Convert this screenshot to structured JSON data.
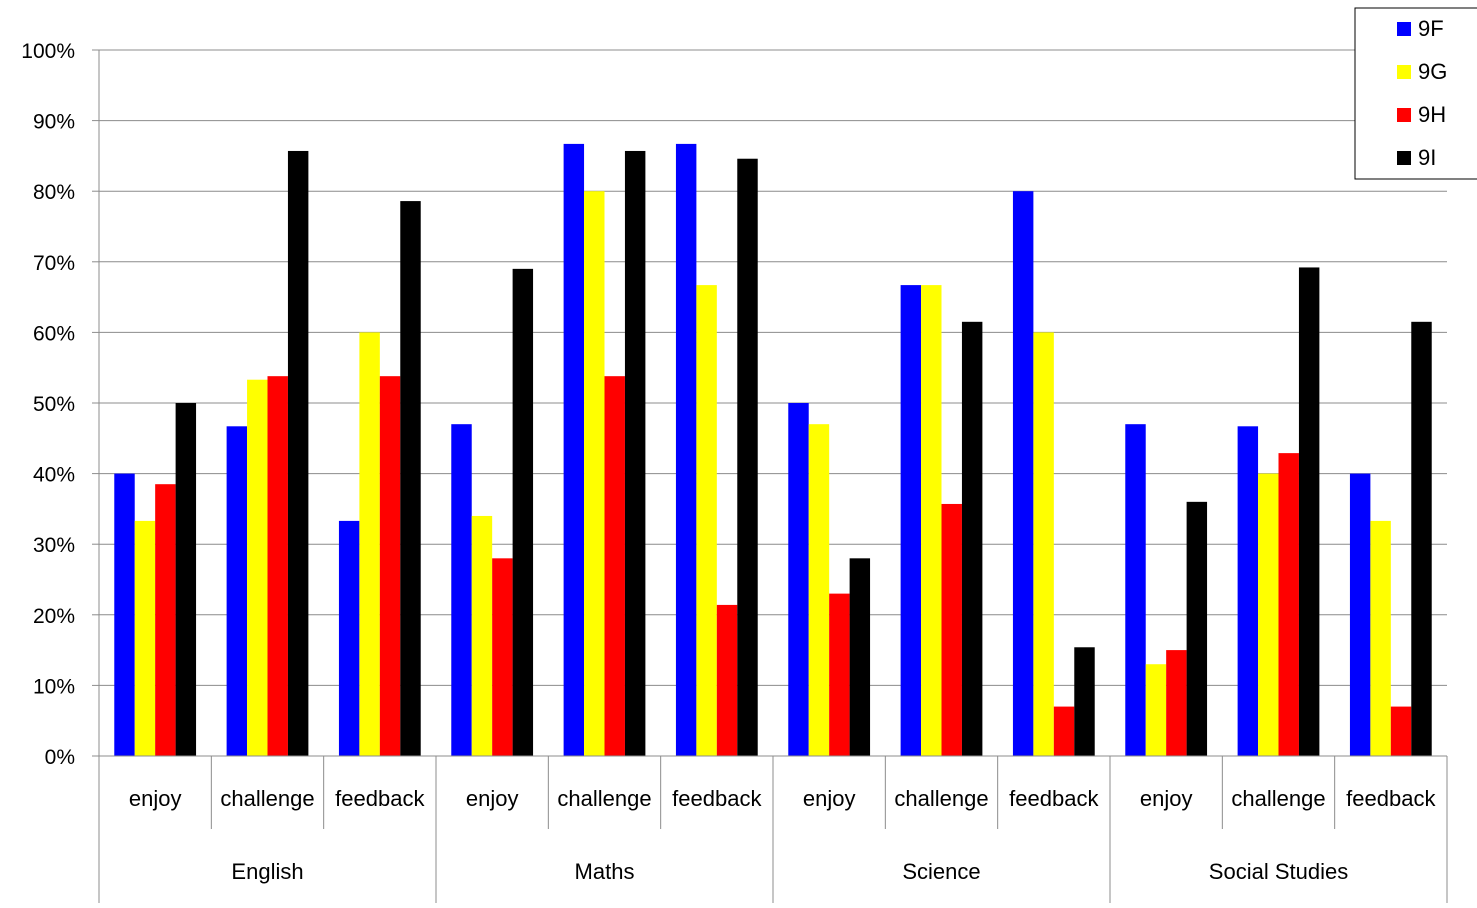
{
  "chart_data": {
    "type": "bar",
    "groups": [
      {
        "name": "English",
        "categories": [
          "enjoy",
          "challenge",
          "feedback"
        ]
      },
      {
        "name": "Maths",
        "categories": [
          "enjoy",
          "challenge",
          "feedback"
        ]
      },
      {
        "name": "Science",
        "categories": [
          "enjoy",
          "challenge",
          "feedback"
        ]
      },
      {
        "name": "Social Studies",
        "categories": [
          "enjoy",
          "challenge",
          "feedback"
        ]
      }
    ],
    "y_unit": "%",
    "ylim": [
      0,
      100
    ],
    "y_ticks": [
      "0%",
      "10%",
      "20%",
      "30%",
      "40%",
      "50%",
      "60%",
      "70%",
      "80%",
      "90%",
      "100%"
    ],
    "grid": true,
    "legend_position": "top-right",
    "series": [
      {
        "name": "9F",
        "color": "#0000FF",
        "values": [
          40,
          46.7,
          33.3,
          47,
          86.7,
          86.7,
          50,
          66.7,
          80,
          47,
          46.7,
          40
        ]
      },
      {
        "name": "9G",
        "color": "#FFFF00",
        "values": [
          33.3,
          53.3,
          60,
          34,
          80,
          66.7,
          47,
          66.7,
          60,
          13,
          40,
          33.3
        ]
      },
      {
        "name": "9H",
        "color": "#FF0000",
        "values": [
          38.5,
          53.8,
          53.8,
          28,
          53.8,
          21.4,
          23,
          35.7,
          7,
          15,
          42.9,
          7
        ]
      },
      {
        "name": "9I",
        "color": "#000000",
        "values": [
          50,
          85.7,
          78.6,
          69,
          85.7,
          84.6,
          28,
          61.5,
          15.4,
          36,
          69.2,
          61.5
        ]
      }
    ]
  }
}
